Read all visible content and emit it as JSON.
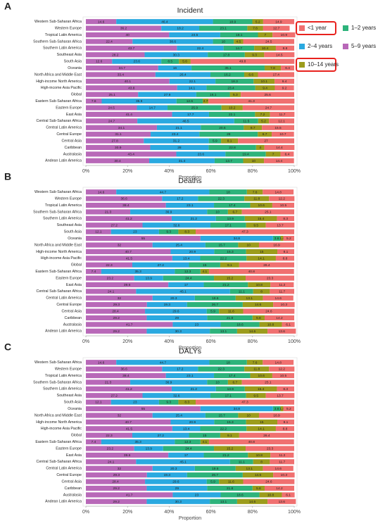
{
  "chart_data": [
    {
      "type": "stacked_bar_h",
      "panel": "A",
      "title": "Incident",
      "xlabel": "Proportion",
      "legend": "right",
      "categories": [
        "Western Sub-Saharan Africa",
        "Western Europe",
        "Tropical Latin America",
        "Southern Sub-Saharan Africa",
        "Southern Latin America",
        "Southeast Asia",
        "South Asia",
        "Oceania",
        "North Africa and Middle East",
        "High-income North America",
        "High-income Asia Pacific",
        "Global",
        "Eastern Sub-Saharan Africa",
        "Eastern Europe",
        "East Asia",
        "Central Sub-Saharan Africa",
        "Central Latin America",
        "Central Europe",
        "Central Asia",
        "Caribbean",
        "Australasia",
        "Andean Latin America"
      ],
      "xlim": [
        0,
        100
      ],
      "xticks": [
        {
          "value": 0,
          "label": "0%"
        },
        {
          "value": 20,
          "label": "20%"
        },
        {
          "value": 40,
          "label": "40%"
        },
        {
          "value": 60,
          "label": "60%"
        },
        {
          "value": 80,
          "label": "80%"
        },
        {
          "value": 100,
          "label": "100%"
        }
      ],
      "series": [
        {
          "name": "5–9 years",
          "color": "#b868b8",
          "values": [
            14.6,
            36.2,
            40.0,
            22.4,
            43.7,
            28.2,
            12.6,
            34.7,
            33.4,
            40.1,
            43.8,
            25.1,
            7.6,
            24.5,
            41.4,
            24.7,
            34.1,
            31.1,
            27.8,
            30.9,
            43.4,
            30.4
          ]
        },
        {
          "name": "2–4 years",
          "color": "#2aa9e0",
          "values": [
            46.4,
            18.2,
            24.5,
            38.6,
            22.4,
            30.3,
            23.6,
            16.0,
            26.4,
            22.1,
            14.1,
            27.9,
            35.9,
            14.7,
            17.7,
            46.5,
            21.1,
            23.4,
            31.2,
            28.0,
            23.6,
            31.4
          ]
        },
        {
          "name": "1–2 years",
          "color": "#2db37b",
          "values": [
            18.9,
            23.1,
            18.1,
            10.0,
            14.7,
            17.8,
            8.5,
            35.1,
            16.2,
            18.3,
            23.4,
            16.1,
            12.6,
            25.9,
            22.1,
            11.5,
            20.6,
            28.0,
            5.9,
            22.8,
            19.4,
            13.7
          ]
        },
        {
          "name": "10–14 years",
          "color": "#9c9c1c",
          "values": [
            5.2,
            7.6,
            7.0,
            4.5,
            10.4,
            9.3,
            5.6,
            7.8,
            6.6,
            10.1,
            9.4,
            5.3,
            2.7,
            10.2,
            7.2,
            5.2,
            8.7,
            6.7,
            8.1,
            4.0,
            7.0,
            10.0
          ]
        },
        {
          "name": "<1 year",
          "color": "#f07070",
          "values": [
            14.9,
            12.7,
            10.9,
            24.5,
            8.8,
            14.5,
            49.8,
            6.4,
            17.4,
            9.4,
            9.2,
            25.6,
            41.3,
            24.7,
            11.7,
            12.1,
            15.5,
            10.7,
            27.0,
            14.4,
            6.4,
            14.4
          ]
        }
      ]
    },
    {
      "type": "stacked_bar_h",
      "panel": "B",
      "title": "Deaths",
      "xlabel": "Proportion",
      "categories": [
        "Western Sub-Saharan Africa",
        "Western Europe",
        "Tropical Latin America",
        "Southern Sub-Saharan Africa",
        "Southern Latin America",
        "Southeast Asia",
        "South Asia",
        "Oceania",
        "North Africa and Middle East",
        "High-income North America",
        "High-income Asia Pacific",
        "Global",
        "Eastern Sub-Saharan Africa",
        "Eastern Europe",
        "East Asia",
        "Central Sub-Saharan Africa",
        "Central Latin America",
        "Central Europe",
        "Central Asia",
        "Caribbean",
        "Australasia",
        "Andean Latin America"
      ],
      "xlim": [
        0,
        100
      ],
      "xticks": [
        {
          "value": 0,
          "label": "0%"
        },
        {
          "value": 20,
          "label": "20%"
        },
        {
          "value": 40,
          "label": "40%"
        },
        {
          "value": 60,
          "label": "60%"
        },
        {
          "value": 80,
          "label": "80%"
        },
        {
          "value": 100,
          "label": "100%"
        }
      ],
      "series": [
        {
          "name": "5–9 years",
          "color": "#b868b8",
          "values": [
            14.6,
            36.6,
            38.4,
            21.3,
            41.2,
            27.2,
            12.1,
            55.0,
            32.0,
            40.7,
            41.5,
            22.3,
            7.4,
            23.2,
            39.6,
            24.1,
            32.0,
            29.3,
            28.4,
            29.2,
            41.7,
            29.2
          ]
        },
        {
          "name": "2–4 years",
          "color": "#2aa9e0",
          "values": [
            44.7,
            17.2,
            23.1,
            36.9,
            21.2,
            32.6,
            23.0,
            34.8,
            25.4,
            20.9,
            13.4,
            27.2,
            35.3,
            13.9,
            17.0,
            45.1,
            20.3,
            19.3,
            29.6,
            29.0,
            23.0,
            30.3
          ]
        },
        {
          "name": "1–2 years",
          "color": "#2db37b",
          "values": [
            18.0,
            22.3,
            17.4,
            10.0,
            13.9,
            17.1,
            9.3,
            3.6,
            15.7,
            15.3,
            22.2,
            15.0,
            12.3,
            24.4,
            21.2,
            11.1,
            19.6,
            26.7,
            5.9,
            21.8,
            18.6,
            13.1
          ]
        },
        {
          "name": "10–14 years",
          "color": "#9c9c1c",
          "values": [
            7.6,
            11.8,
            10.6,
            6.7,
            15.4,
            9.5,
            8.3,
            1.4,
            10.0,
            15.0,
            14.1,
            9.1,
            4.1,
            15.2,
            10.8,
            8.0,
            13.1,
            14.6,
            11.6,
            5.8,
            10.8,
            14.6
          ]
        },
        {
          "name": "<1 year",
          "color": "#f07070",
          "values": [
            14.8,
            12.2,
            10.5,
            25.1,
            8.3,
            13.7,
            47.3,
            5.2,
            16.9,
            8.1,
            8.8,
            26.4,
            40.8,
            23.3,
            11.2,
            11.7,
            14.6,
            10.3,
            24.6,
            14.2,
            6.1,
            13.6
          ]
        }
      ]
    },
    {
      "type": "stacked_bar_h",
      "panel": "C",
      "title": "DALYs",
      "xlabel": "Proportion",
      "categories": [
        "Western Sub-Saharan Africa",
        "Western Europe",
        "Tropical Latin America",
        "Southern Sub-Saharan Africa",
        "Southern Latin America",
        "Southeast Asia",
        "South Asia",
        "Oceania",
        "North Africa and Middle East",
        "High-income North America",
        "High-income Asia Pacific",
        "Global",
        "Eastern Sub-Saharan Africa",
        "Eastern Europe",
        "East Asia",
        "Central Sub-Saharan Africa",
        "Central Latin America",
        "Central Europe",
        "Central Asia",
        "Caribbean",
        "Australasia",
        "Andean Latin America"
      ],
      "xlim": [
        0,
        100
      ],
      "xticks": [
        {
          "value": 0,
          "label": "0%"
        },
        {
          "value": 20,
          "label": "20%"
        },
        {
          "value": 40,
          "label": "40%"
        },
        {
          "value": 60,
          "label": "60%"
        },
        {
          "value": 80,
          "label": "80%"
        },
        {
          "value": 100,
          "label": "100%"
        }
      ],
      "series": [
        {
          "name": "5–9 years",
          "color": "#b868b8",
          "values": [
            14.6,
            36.6,
            38.4,
            21.3,
            41.2,
            27.2,
            12.1,
            55.0,
            32.0,
            40.7,
            41.5,
            22.3,
            7.4,
            23.2,
            39.6,
            24.1,
            32.0,
            29.3,
            28.4,
            29.2,
            41.7,
            29.2
          ]
        },
        {
          "name": "2–4 years",
          "color": "#2aa9e0",
          "values": [
            44.7,
            17.2,
            23.1,
            36.9,
            21.2,
            32.6,
            23.0,
            34.8,
            25.4,
            20.9,
            13.4,
            27.2,
            35.3,
            13.9,
            17.0,
            45.1,
            20.3,
            19.3,
            29.6,
            29.0,
            23.0,
            30.3
          ]
        },
        {
          "name": "1–2 years",
          "color": "#2db37b",
          "values": [
            18.0,
            22.3,
            17.4,
            10.0,
            13.9,
            17.1,
            9.3,
            3.6,
            15.7,
            15.3,
            22.2,
            15.0,
            12.3,
            24.4,
            21.2,
            11.1,
            19.6,
            26.7,
            5.9,
            21.8,
            18.6,
            13.1
          ]
        },
        {
          "name": "10–14 years",
          "color": "#9c9c1c",
          "values": [
            7.6,
            11.8,
            10.6,
            6.7,
            15.4,
            9.5,
            8.3,
            1.4,
            10.0,
            15.0,
            14.1,
            9.1,
            4.1,
            15.2,
            10.8,
            8.0,
            13.1,
            14.6,
            11.6,
            5.8,
            10.8,
            14.6
          ]
        },
        {
          "name": "<1 year",
          "color": "#f07070",
          "values": [
            14.8,
            12.2,
            10.5,
            25.1,
            8.3,
            13.7,
            47.3,
            5.2,
            16.9,
            8.1,
            8.8,
            26.4,
            40.8,
            23.3,
            11.2,
            11.7,
            14.6,
            10.3,
            24.6,
            14.2,
            6.1,
            13.6
          ]
        }
      ]
    }
  ]
}
